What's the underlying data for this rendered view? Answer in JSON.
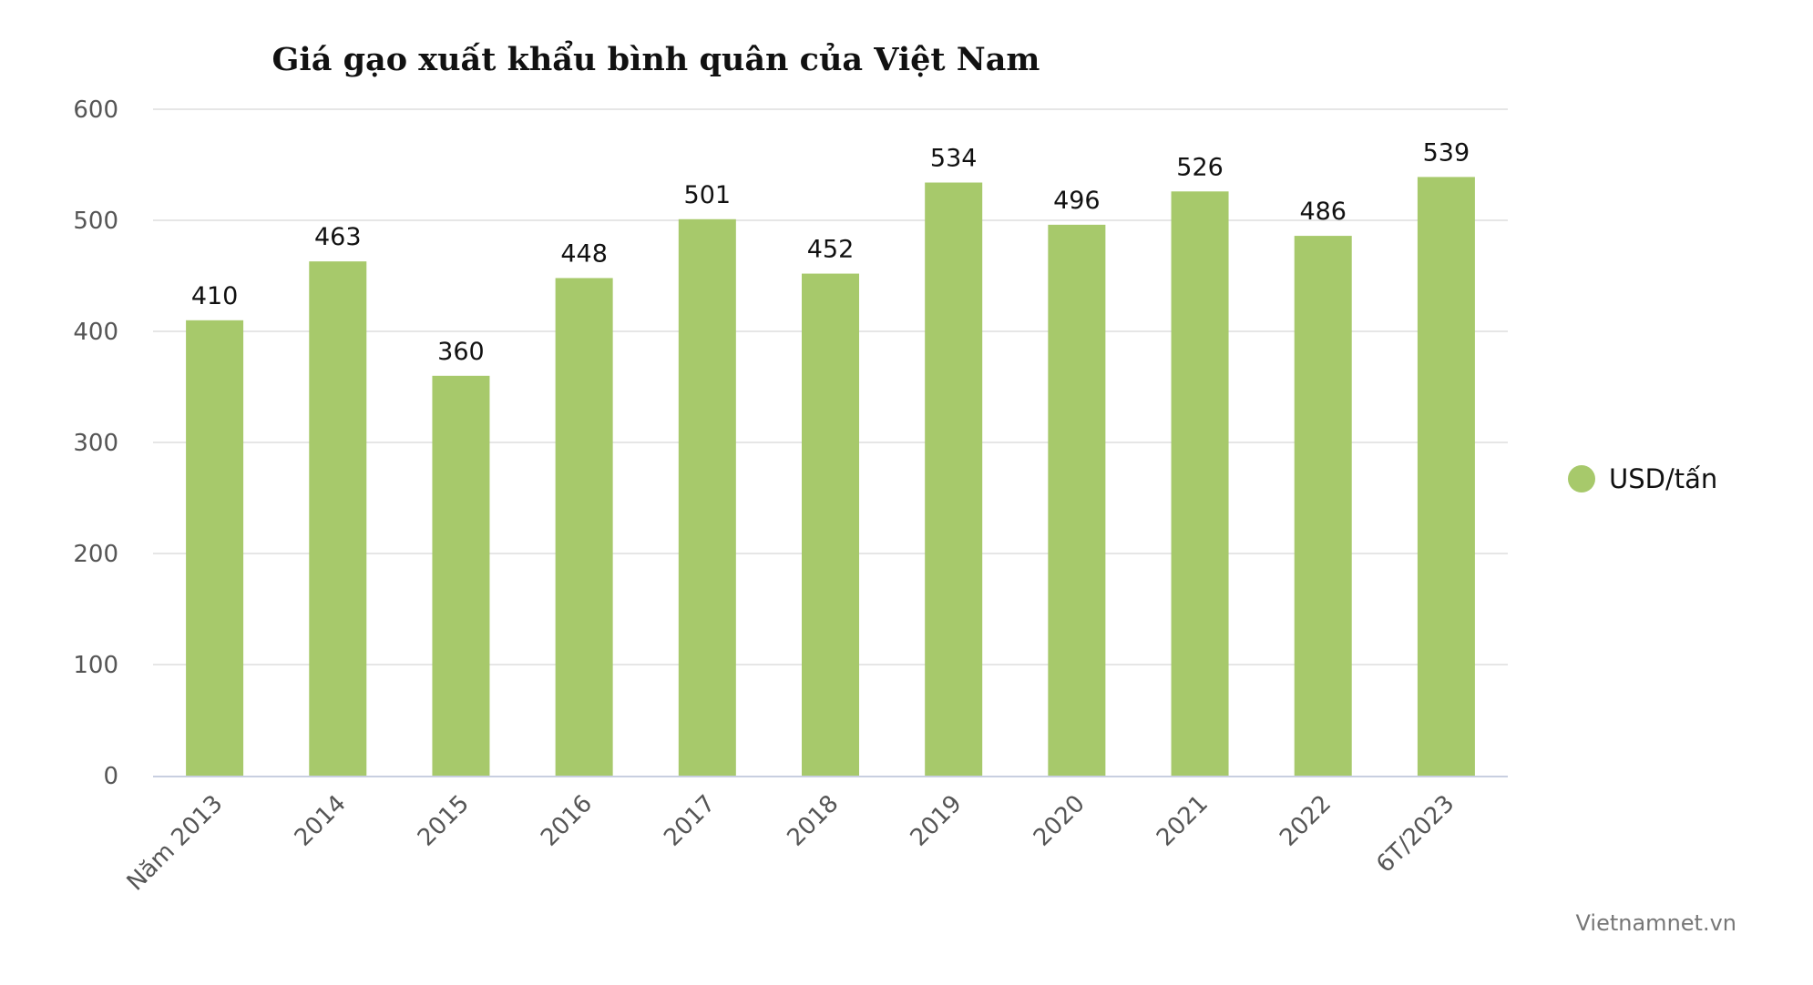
{
  "chart_data": {
    "type": "bar",
    "title": "Giá gạo xuất khẩu bình quân của Việt Nam",
    "categories": [
      "Năm 2013",
      "2014",
      "2015",
      "2016",
      "2017",
      "2018",
      "2019",
      "2020",
      "2021",
      "2022",
      "6T/2023"
    ],
    "series": [
      {
        "name": "USD/tấn",
        "values": [
          410,
          463,
          360,
          448,
          501,
          452,
          534,
          496,
          526,
          486,
          539
        ],
        "color": "#a7c96b"
      }
    ],
    "ylim": [
      0,
      600
    ],
    "yticks": [
      0,
      100,
      200,
      300,
      400,
      500,
      600
    ],
    "grid": true,
    "legend_position": "right",
    "data_labels": true
  },
  "credit": "Vietnamnet.vn",
  "colors": {
    "bar": "#a7c96b",
    "grid": "#e6e6e6",
    "axis": "#c8cfe0"
  }
}
